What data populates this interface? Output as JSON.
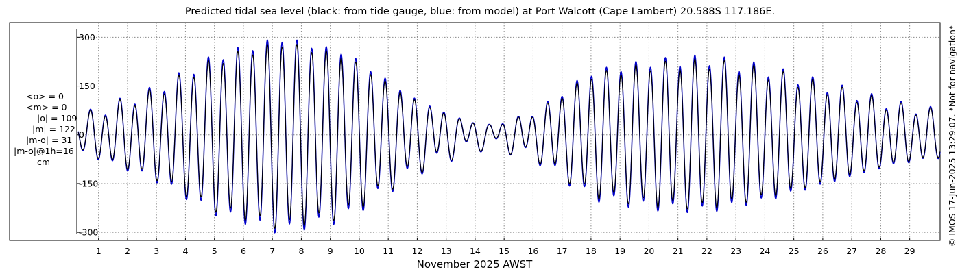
{
  "chart_data": {
    "type": "line",
    "title": "Predicted tidal sea level (black: from tide gauge, blue: from model) at Port Walcott (Cape Lambert) 20.588S 117.186E.",
    "xlabel": "November 2025 AWST",
    "ylabel": "",
    "units": "cm",
    "xlim": [
      0.25,
      30.05
    ],
    "ylim": [
      -325,
      345
    ],
    "grid": true,
    "y_ticks": [
      "300",
      "150",
      "0",
      "-150",
      "-300"
    ],
    "y_tick_values": [
      300,
      150,
      0,
      -150,
      -300
    ],
    "x_ticks": [
      "1",
      "2",
      "3",
      "4",
      "5",
      "6",
      "7",
      "8",
      "9",
      "10",
      "11",
      "12",
      "13",
      "14",
      "15",
      "16",
      "17",
      "18",
      "19",
      "20",
      "21",
      "22",
      "23",
      "24",
      "25",
      "26",
      "27",
      "28",
      "29"
    ],
    "x_tick_values": [
      1,
      2,
      3,
      4,
      5,
      6,
      7,
      8,
      9,
      10,
      11,
      12,
      13,
      14,
      15,
      16,
      17,
      18,
      19,
      20,
      21,
      22,
      23,
      24,
      25,
      26,
      27,
      28,
      29
    ],
    "series": [
      {
        "name": "tide gauge",
        "color": "#000000",
        "day_start": 0.3,
        "day_end": 30.05,
        "semidiurnal_period_days": 1.0175,
        "semidiurnal_phase_day": 0.215,
        "diurnal_period_days": 1.0,
        "diurnal_phase_day": 0.68,
        "envelope_days": [
          0.3,
          3,
          5,
          7.3,
          9.5,
          12,
          13.5,
          14.5,
          16,
          18,
          20,
          22,
          24,
          26,
          28.5,
          30
        ],
        "semidiurnal_amplitude_cm": [
          45,
          130,
          225,
          280,
          240,
          100,
          45,
          25,
          60,
          180,
          210,
          220,
          190,
          145,
          85,
          65
        ],
        "diurnal_amplitude_cm": [
          18,
          20,
          18,
          16,
          18,
          22,
          22,
          20,
          18,
          17,
          18,
          20,
          20,
          18,
          16,
          15
        ]
      },
      {
        "name": "model",
        "color": "#0000cc",
        "semidiurnal_amplitude_scale": 1.05
      }
    ]
  },
  "stats": {
    "lines": [
      "<o> = 0",
      "<m> = 0",
      "|o| = 109",
      "|m| = 122",
      "|m-o| = 31",
      "|m-o|@1h=16",
      "cm"
    ]
  },
  "copyright": "© IMOS 17-Jun-2025 13:29:07. *Not for navigation*"
}
